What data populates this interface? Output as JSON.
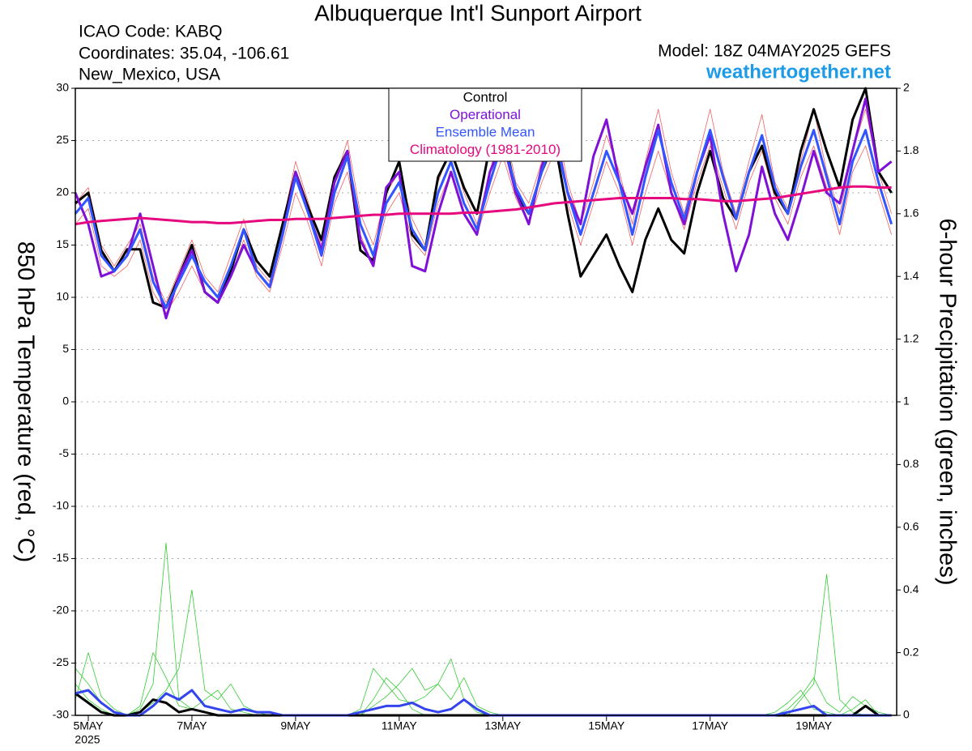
{
  "header": {
    "icao": "ICAO Code: KABQ",
    "coordinates": "Coordinates: 35.04, -106.61",
    "location": "New_Mexico, USA",
    "model": "Model: 18Z 04MAY2025 GEFS",
    "website": "weathertogether.net"
  },
  "chart_data": {
    "type": "line",
    "title": "Albuquerque Int'l Sunport Airport",
    "y_label": "850 hPa Temperature (red, °C)",
    "y2_label": "6-hour Precipitation (green, inches)",
    "x_sublabel": "2025",
    "x": [
      4.75,
      5,
      5.25,
      5.5,
      5.75,
      6,
      6.25,
      6.5,
      6.75,
      7,
      7.25,
      7.5,
      7.75,
      8,
      8.25,
      8.5,
      8.75,
      9,
      9.25,
      9.5,
      9.75,
      10,
      10.25,
      10.5,
      10.75,
      11,
      11.25,
      11.5,
      11.75,
      12,
      12.25,
      12.5,
      12.75,
      13,
      13.25,
      13.5,
      13.75,
      14,
      14.25,
      14.5,
      14.75,
      15,
      15.25,
      15.5,
      15.75,
      16,
      16.25,
      16.5,
      16.75,
      17,
      17.25,
      17.5,
      17.75,
      18,
      18.25,
      18.5,
      18.75,
      19,
      19.25,
      19.5,
      19.75,
      20,
      20.25,
      20.5
    ],
    "xlim": [
      4.75,
      20.6
    ],
    "xticks": [
      {
        "value": 5,
        "label": "5MAY"
      },
      {
        "value": 7,
        "label": "7MAY"
      },
      {
        "value": 9,
        "label": "9MAY"
      },
      {
        "value": 11,
        "label": "11MAY"
      },
      {
        "value": 13,
        "label": "13MAY"
      },
      {
        "value": 15,
        "label": "15MAY"
      },
      {
        "value": 17,
        "label": "17MAY"
      },
      {
        "value": 19,
        "label": "19MAY"
      }
    ],
    "ylim": [
      -30,
      30
    ],
    "yticks": [
      -30,
      -25,
      -20,
      -15,
      -10,
      -5,
      0,
      5,
      10,
      15,
      20,
      25,
      30
    ],
    "y2lim": [
      0,
      2
    ],
    "y2ticks": [
      0,
      0.2,
      0.4,
      0.6,
      0.8,
      1,
      1.2,
      1.4,
      1.6,
      1.8,
      2
    ],
    "grid": true,
    "legend": "top-center",
    "ensemble_members": [
      {
        "color": "#f26060",
        "axis": "y",
        "values": [
          19,
          20.5,
          15,
          13,
          15,
          17,
          12,
          9.5,
          12.5,
          15.5,
          12,
          10.5,
          14,
          17.5,
          13,
          11.5,
          17,
          23,
          19,
          15,
          21,
          25,
          18,
          15,
          20,
          22,
          17.5,
          15,
          21,
          24.5,
          20,
          17,
          22,
          27,
          21,
          19,
          23,
          27.5,
          21,
          17,
          21,
          25.5,
          22,
          17,
          23,
          28,
          22,
          18,
          23,
          28,
          22,
          18,
          23,
          27.5,
          21,
          18.5,
          23,
          28,
          22,
          18,
          24,
          28,
          22,
          18
        ]
      },
      {
        "color": "#f26060",
        "axis": "y",
        "values": [
          17,
          18.5,
          13,
          12,
          13,
          15.5,
          10.5,
          8.5,
          10.5,
          13,
          10.5,
          9.5,
          12,
          15.5,
          12,
          10.5,
          15,
          20,
          17,
          13,
          19,
          22,
          16,
          13,
          18,
          20,
          15.5,
          14,
          19,
          22,
          18,
          16,
          20,
          23.5,
          19.5,
          17,
          21,
          24,
          19,
          15,
          19,
          23,
          20,
          15,
          20,
          24,
          20,
          16.5,
          21,
          24.5,
          20.5,
          16.5,
          21,
          24,
          19.5,
          17,
          21.5,
          24.5,
          20.5,
          16,
          22,
          24.5,
          20,
          16
        ]
      },
      {
        "color": "#33cc33",
        "axis": "y2",
        "values": [
          0.1,
          0.05,
          0.02,
          0,
          0,
          0.02,
          0.1,
          0.55,
          0.05,
          0.02,
          0.01,
          0,
          0,
          0,
          0,
          0,
          0,
          0,
          0,
          0,
          0,
          0,
          0,
          0.05,
          0.12,
          0.08,
          0.02,
          0,
          0,
          0,
          0,
          0,
          0,
          0,
          0,
          0,
          0,
          0,
          0,
          0,
          0,
          0,
          0,
          0,
          0,
          0,
          0,
          0,
          0,
          0,
          0,
          0,
          0,
          0,
          0,
          0,
          0.05,
          0.1,
          0.45,
          0.05,
          0.01,
          0,
          0,
          0
        ]
      },
      {
        "color": "#33cc33",
        "axis": "y2",
        "values": [
          0.05,
          0.2,
          0.06,
          0.02,
          0,
          0.01,
          0.04,
          0.08,
          0.15,
          0.4,
          0.08,
          0.05,
          0.1,
          0.03,
          0.01,
          0,
          0,
          0,
          0,
          0,
          0,
          0,
          0.02,
          0.15,
          0.1,
          0.05,
          0.04,
          0.06,
          0.1,
          0.05,
          0.12,
          0.03,
          0.01,
          0,
          0,
          0,
          0,
          0,
          0,
          0,
          0,
          0,
          0,
          0,
          0,
          0,
          0,
          0,
          0,
          0,
          0,
          0,
          0,
          0,
          0,
          0.02,
          0.06,
          0.12,
          0.04,
          0.01,
          0.06,
          0.03,
          0.01,
          0
        ]
      },
      {
        "color": "#33cc33",
        "axis": "y2",
        "values": [
          0.15,
          0.1,
          0.04,
          0.01,
          0,
          0.03,
          0.2,
          0.12,
          0.03,
          0.02,
          0.05,
          0.08,
          0.02,
          0.01,
          0,
          0,
          0,
          0,
          0,
          0,
          0,
          0,
          0,
          0.03,
          0.06,
          0.1,
          0.15,
          0.08,
          0.1,
          0.18,
          0.05,
          0.01,
          0,
          0,
          0,
          0,
          0,
          0,
          0,
          0,
          0,
          0,
          0,
          0,
          0,
          0,
          0,
          0,
          0,
          0,
          0,
          0,
          0,
          0,
          0.01,
          0.04,
          0.08,
          0.02,
          0.01,
          0,
          0.02,
          0.05,
          0,
          0
        ]
      }
    ],
    "series": [
      {
        "color": "#000000",
        "axis": "y2",
        "values": [
          0.07,
          0.04,
          0.01,
          0,
          0,
          0.01,
          0.05,
          0.04,
          0.01,
          0.02,
          0.01,
          0,
          0,
          0,
          0,
          0,
          0,
          0,
          0,
          0,
          0,
          0,
          0,
          0,
          0,
          0,
          0,
          0,
          0,
          0,
          0,
          0,
          0,
          0,
          0,
          0,
          0,
          0,
          0,
          0,
          0,
          0,
          0,
          0,
          0,
          0,
          0,
          0,
          0,
          0,
          0,
          0,
          0,
          0,
          0,
          0,
          0,
          0,
          0,
          0,
          0,
          0.03,
          0,
          0
        ]
      },
      {
        "color": "#3344ee",
        "axis": "y2",
        "values": [
          0.07,
          0.08,
          0.04,
          0.01,
          0,
          0,
          0.03,
          0.07,
          0.05,
          0.08,
          0.03,
          0.02,
          0.01,
          0.02,
          0.01,
          0.01,
          0,
          0,
          0,
          0,
          0,
          0,
          0.01,
          0.02,
          0.03,
          0.03,
          0.04,
          0.02,
          0.01,
          0.02,
          0.05,
          0.02,
          0,
          0,
          0,
          0,
          0,
          0,
          0,
          0,
          0,
          0,
          0,
          0,
          0,
          0,
          0,
          0,
          0,
          0,
          0,
          0,
          0,
          0,
          0,
          0.01,
          0.02,
          0.03,
          0,
          0,
          0,
          0,
          0,
          0
        ]
      },
      {
        "name": "Control",
        "color": "#000000",
        "axis": "y",
        "values": [
          19,
          20,
          14.5,
          12.5,
          14.6,
          14.6,
          9.5,
          9,
          12,
          15,
          10.5,
          9.5,
          12.5,
          16.5,
          13.5,
          12,
          17,
          22,
          18.5,
          15.5,
          21.5,
          24,
          14.5,
          13.5,
          20,
          23,
          16,
          14.5,
          21.5,
          24,
          20.5,
          18,
          24.5,
          26,
          20,
          18,
          22,
          25,
          18,
          12,
          14,
          16,
          13,
          10.5,
          15.5,
          18.5,
          15.5,
          14.2,
          20,
          24,
          19.5,
          17.5,
          22,
          24.5,
          20,
          18,
          24,
          28,
          24,
          20.5,
          27,
          30,
          22,
          20
        ]
      },
      {
        "name": "Operational",
        "color": "#7f10d8",
        "axis": "y",
        "values": [
          20,
          17,
          12,
          12.5,
          14,
          18,
          13,
          8,
          12,
          14.5,
          10.5,
          9.5,
          12,
          15,
          12.5,
          11,
          16,
          22,
          18,
          14.5,
          21,
          24,
          15.5,
          13,
          20.5,
          22,
          13,
          12.5,
          18,
          22,
          18,
          16,
          22,
          25,
          20,
          17,
          22.5,
          26,
          20,
          17,
          23.5,
          27,
          21,
          18,
          22.5,
          26.5,
          20,
          17,
          22,
          25.5,
          18,
          12.5,
          16,
          22.5,
          18,
          15.5,
          19.5,
          24,
          20,
          19,
          24,
          29,
          22,
          23
        ]
      },
      {
        "name": "Ensemble Mean",
        "color": "#3355ff",
        "axis": "y",
        "values": [
          18,
          19.5,
          14,
          12.5,
          14,
          16.5,
          11.5,
          9,
          11.5,
          14,
          11.5,
          10,
          13,
          16.5,
          12.5,
          11,
          16,
          21.5,
          18,
          14,
          20,
          23.5,
          17,
          14,
          19,
          21,
          16.5,
          14.5,
          20,
          23,
          19,
          16.5,
          21,
          25,
          20.5,
          18,
          22,
          25.5,
          20,
          16,
          20,
          24,
          21,
          16,
          21.5,
          26,
          21,
          17.5,
          22,
          26,
          21.5,
          17.5,
          22,
          25.5,
          20.5,
          18,
          22.5,
          26,
          21.5,
          17,
          23,
          26,
          21,
          17
        ]
      },
      {
        "name": "Climatology (1981-2010)",
        "color": "#e6087e",
        "axis": "y",
        "values": [
          17,
          17.2,
          17.3,
          17.4,
          17.5,
          17.6,
          17.5,
          17.4,
          17.3,
          17.2,
          17.2,
          17.1,
          17.1,
          17.2,
          17.3,
          17.4,
          17.4,
          17.5,
          17.5,
          17.5,
          17.6,
          17.7,
          17.8,
          17.9,
          17.9,
          18,
          18,
          18,
          18,
          18,
          18.1,
          18.1,
          18.2,
          18.3,
          18.4,
          18.6,
          18.8,
          19,
          19.1,
          19.2,
          19.3,
          19.4,
          19.5,
          19.5,
          19.5,
          19.5,
          19.5,
          19.4,
          19.4,
          19.3,
          19.2,
          19.2,
          19.3,
          19.4,
          19.5,
          19.7,
          19.9,
          20.1,
          20.3,
          20.5,
          20.6,
          20.6,
          20.5,
          20.5
        ]
      }
    ]
  }
}
